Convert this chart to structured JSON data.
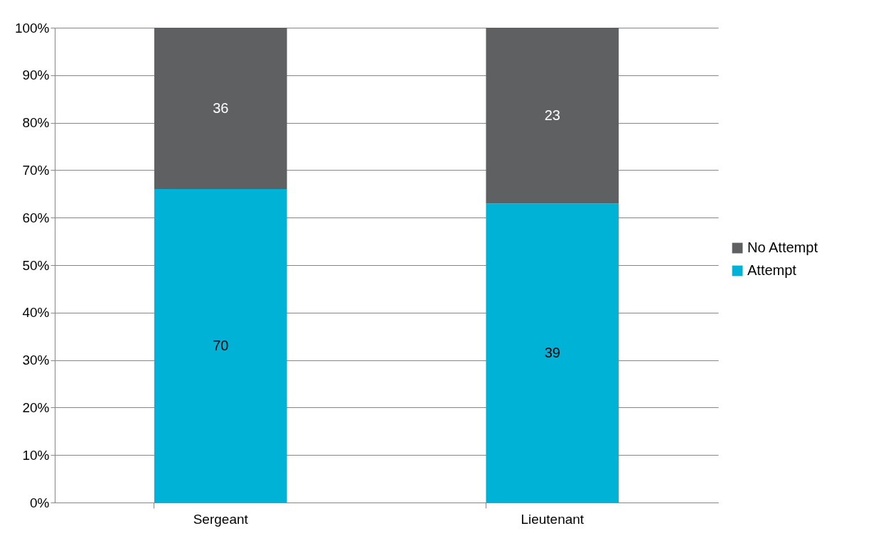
{
  "chart_data": {
    "type": "bar",
    "stacked": true,
    "categories": [
      "Sergeant",
      "Lieutenant"
    ],
    "series": [
      {
        "name": "Attempt",
        "color": "#00b2d6",
        "values": [
          66,
          63
        ]
      },
      {
        "name": "No Attempt",
        "color": "#5f6062",
        "values": [
          34,
          37
        ]
      }
    ],
    "annotations": [
      "70",
      "36",
      "39",
      "23"
    ],
    "ylim": [
      0,
      100
    ],
    "yticks": [
      {
        "value": 0,
        "label": "0%"
      },
      {
        "value": 10,
        "label": "10%"
      },
      {
        "value": 20,
        "label": "20%"
      },
      {
        "value": 30,
        "label": "30%"
      },
      {
        "value": 40,
        "label": "40%"
      },
      {
        "value": 50,
        "label": "50%"
      },
      {
        "value": 60,
        "label": "60%"
      },
      {
        "value": 70,
        "label": "70%"
      },
      {
        "value": 80,
        "label": "80%"
      },
      {
        "value": 90,
        "label": "90%"
      },
      {
        "value": 100,
        "label": "100%"
      }
    ],
    "grid": "y",
    "legend": "right"
  }
}
